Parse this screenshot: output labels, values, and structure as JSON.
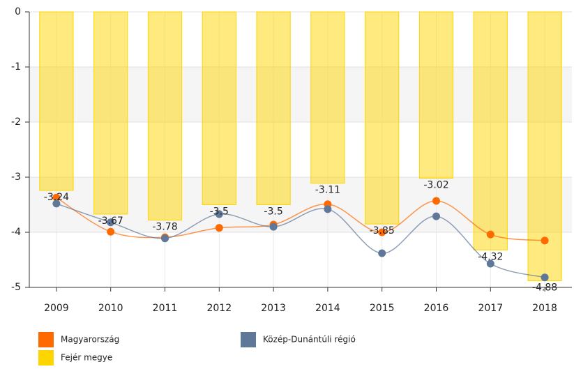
{
  "chart_data": {
    "type": "bar",
    "categories": [
      "2009",
      "2010",
      "2011",
      "2012",
      "2013",
      "2014",
      "2015",
      "2016",
      "2017",
      "2018"
    ],
    "series": [
      {
        "name": "Magyarország",
        "type": "line",
        "color": "#ff6a00",
        "values": [
          -3.37,
          -3.99,
          -4.09,
          -3.92,
          -3.86,
          -3.49,
          -4.0,
          -3.43,
          -4.04,
          -4.15
        ]
      },
      {
        "name": "Közép-Dunántúli régió",
        "type": "line",
        "color": "#5f7899",
        "values": [
          -3.48,
          -3.82,
          -4.11,
          -3.67,
          -3.9,
          -3.58,
          -4.38,
          -3.71,
          -4.57,
          -4.82
        ]
      },
      {
        "name": "Fejér megye",
        "type": "bar",
        "color": "#ffd500",
        "values": [
          -3.24,
          -3.67,
          -3.78,
          -3.5,
          -3.5,
          -3.11,
          -3.85,
          -3.02,
          -4.32,
          -4.88
        ]
      }
    ],
    "ylim": [
      -5,
      0
    ],
    "yticks": [
      0,
      -1,
      -2,
      -3,
      -4,
      -5
    ],
    "grid": true
  }
}
